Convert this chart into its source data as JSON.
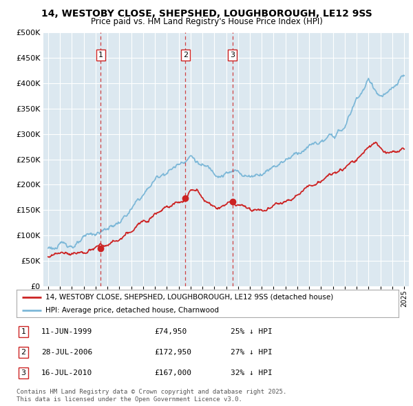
{
  "title": "14, WESTOBY CLOSE, SHEPSHED, LOUGHBOROUGH, LE12 9SS",
  "subtitle": "Price paid vs. HM Land Registry's House Price Index (HPI)",
  "hpi_color": "#7db8d8",
  "price_color": "#cc2222",
  "bg_color": "#dce8f0",
  "legend_label_price": "14, WESTOBY CLOSE, SHEPSHED, LOUGHBOROUGH, LE12 9SS (detached house)",
  "legend_label_hpi": "HPI: Average price, detached house, Charnwood",
  "transactions": [
    {
      "num": 1,
      "date": "11-JUN-1999",
      "price": 74950,
      "year": 1999.44,
      "pct": "25%",
      "dir": "↓"
    },
    {
      "num": 2,
      "date": "28-JUL-2006",
      "price": 172950,
      "year": 2006.57,
      "pct": "27%",
      "dir": "↓"
    },
    {
      "num": 3,
      "date": "16-JUL-2010",
      "price": 167000,
      "year": 2010.54,
      "pct": "32%",
      "dir": "↓"
    }
  ],
  "footer": "Contains HM Land Registry data © Crown copyright and database right 2025.\nThis data is licensed under the Open Government Licence v3.0.",
  "ylim": [
    0,
    500000
  ],
  "yticks": [
    0,
    50000,
    100000,
    150000,
    200000,
    250000,
    300000,
    350000,
    400000,
    450000,
    500000
  ],
  "xlim_start": 1994.6,
  "xlim_end": 2025.4,
  "hpi_anchors_x": [
    1995,
    1996,
    1997,
    1998,
    1999,
    2000,
    2001,
    2002,
    2003,
    2004,
    2005,
    2006,
    2007,
    2008,
    2009,
    2010,
    2011,
    2012,
    2013,
    2014,
    2015,
    2016,
    2017,
    2018,
    2019,
    2020,
    2021,
    2022,
    2023,
    2024,
    2025
  ],
  "hpi_anchors_y": [
    75000,
    78000,
    82000,
    88000,
    95000,
    105000,
    118000,
    140000,
    165000,
    195000,
    215000,
    230000,
    255000,
    235000,
    220000,
    230000,
    228000,
    222000,
    235000,
    255000,
    272000,
    290000,
    305000,
    310000,
    315000,
    330000,
    385000,
    420000,
    390000,
    395000,
    415000
  ],
  "price_anchors_x": [
    1995,
    1996,
    1997,
    1998,
    1999,
    1999.44,
    2000,
    2001,
    2002,
    2003,
    2004,
    2005,
    2006,
    2006.57,
    2007,
    2007.5,
    2008,
    2009,
    2010,
    2010.54,
    2011,
    2012,
    2013,
    2014,
    2015,
    2016,
    2017,
    2018,
    2019,
    2020,
    2021,
    2022,
    2022.5,
    2023,
    2023.5,
    2024,
    2025
  ],
  "price_anchors_y": [
    58000,
    60000,
    63000,
    67000,
    70000,
    74950,
    72000,
    78000,
    88000,
    105000,
    135000,
    158000,
    165000,
    172950,
    190000,
    190000,
    178000,
    158000,
    162000,
    167000,
    162000,
    155000,
    158000,
    168000,
    182000,
    198000,
    212000,
    225000,
    235000,
    242000,
    255000,
    278000,
    287000,
    272000,
    258000,
    265000,
    270000
  ]
}
